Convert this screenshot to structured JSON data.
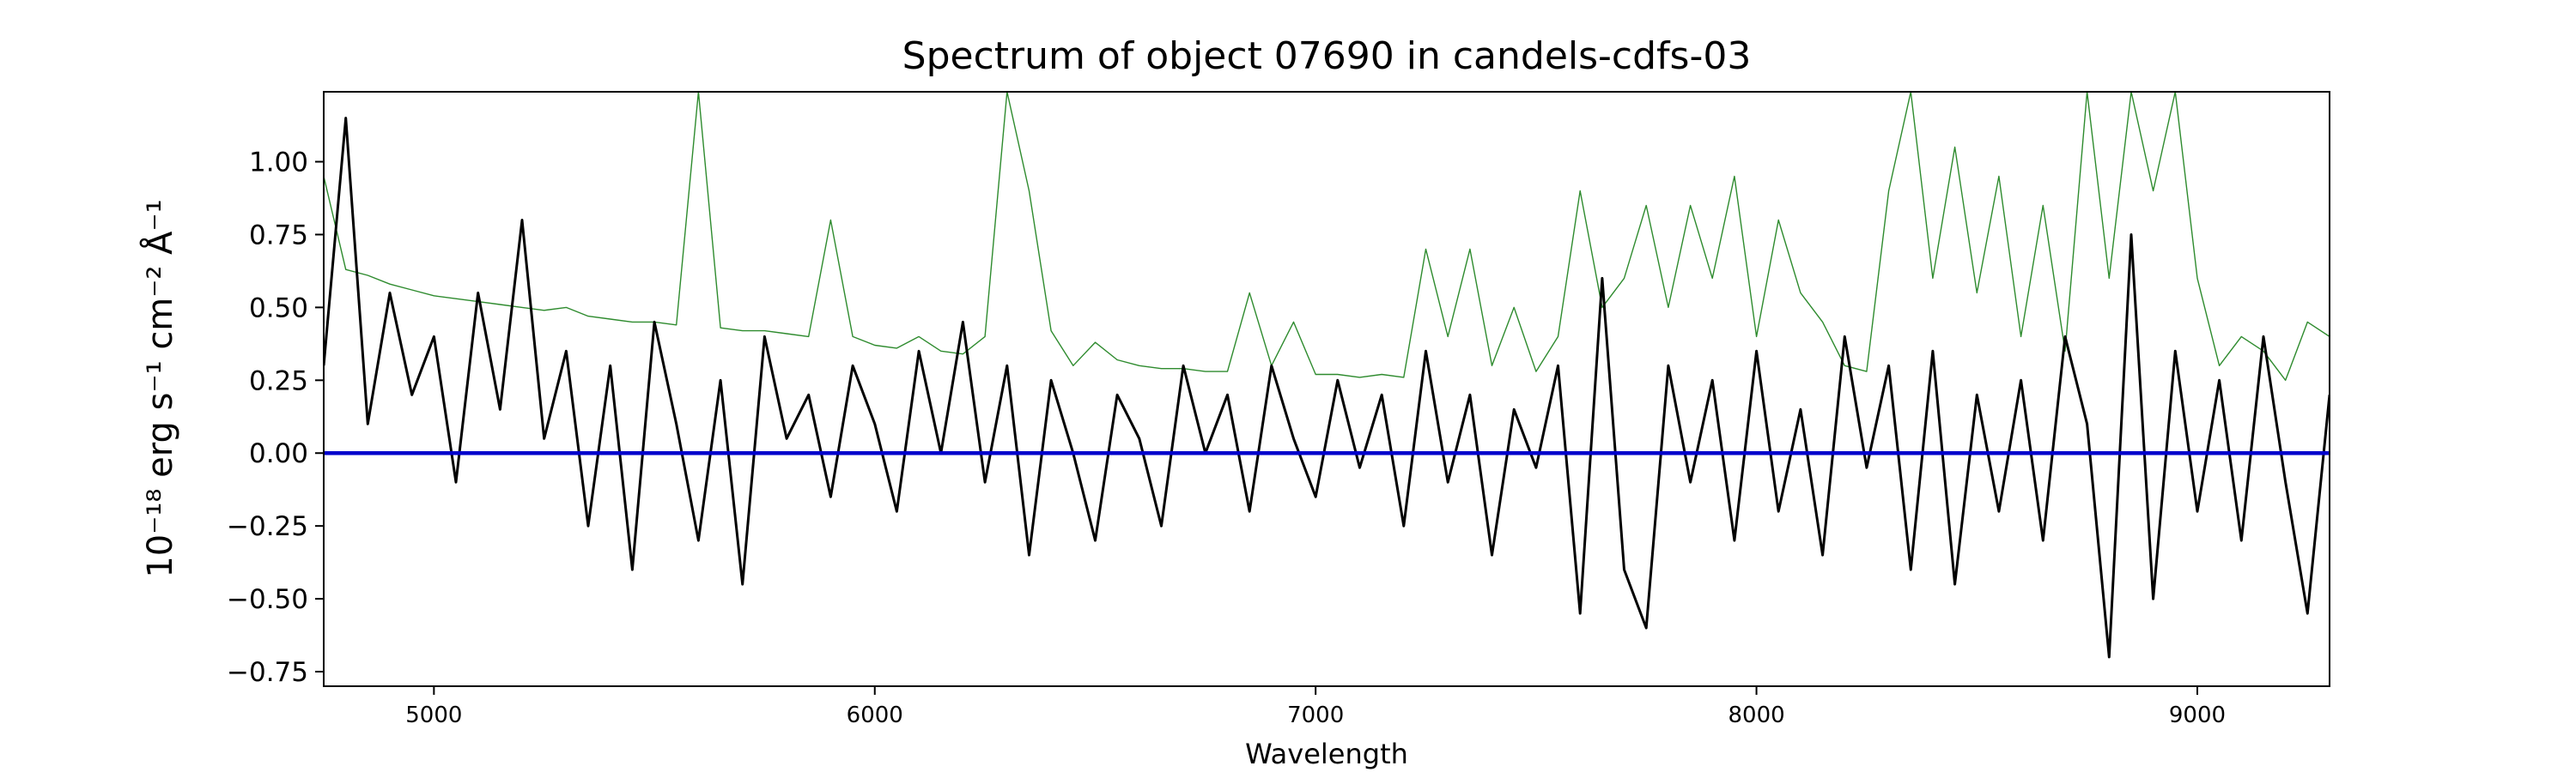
{
  "chart_data": {
    "type": "line",
    "title": "Spectrum of object 07690 in candels-cdfs-03",
    "xlabel": "Wavelength",
    "ylabel": "10⁻¹⁸ erg s⁻¹ cm⁻² Å⁻¹",
    "x": [
      4750,
      4800,
      4850,
      4900,
      4950,
      5000,
      5050,
      5100,
      5150,
      5200,
      5250,
      5300,
      5350,
      5400,
      5450,
      5500,
      5550,
      5600,
      5650,
      5700,
      5750,
      5800,
      5850,
      5900,
      5950,
      6000,
      6050,
      6100,
      6150,
      6200,
      6250,
      6300,
      6350,
      6400,
      6450,
      6500,
      6550,
      6600,
      6650,
      6700,
      6750,
      6800,
      6850,
      6900,
      6950,
      7000,
      7050,
      7100,
      7150,
      7200,
      7250,
      7300,
      7350,
      7400,
      7450,
      7500,
      7550,
      7600,
      7650,
      7700,
      7750,
      7800,
      7850,
      7900,
      7950,
      8000,
      8050,
      8100,
      8150,
      8200,
      8250,
      8300,
      8350,
      8400,
      8450,
      8500,
      8550,
      8600,
      8650,
      8700,
      8750,
      8800,
      8850,
      8900,
      8950,
      9000,
      9050,
      9100,
      9150,
      9200,
      9250,
      9300
    ],
    "series": [
      {
        "color": "#000000",
        "values": [
          0.3,
          1.15,
          0.1,
          0.55,
          0.2,
          0.4,
          -0.1,
          0.55,
          0.15,
          0.8,
          0.05,
          0.35,
          -0.25,
          0.3,
          -0.4,
          0.45,
          0.1,
          -0.3,
          0.25,
          -0.45,
          0.4,
          0.05,
          0.2,
          -0.15,
          0.3,
          0.1,
          -0.2,
          0.35,
          0.0,
          0.45,
          -0.1,
          0.3,
          -0.35,
          0.25,
          0.0,
          -0.3,
          0.2,
          0.05,
          -0.25,
          0.3,
          0.0,
          0.2,
          -0.2,
          0.3,
          0.05,
          -0.15,
          0.25,
          -0.05,
          0.2,
          -0.25,
          0.35,
          -0.1,
          0.2,
          -0.35,
          0.15,
          -0.05,
          0.3,
          -0.55,
          0.6,
          -0.4,
          -0.6,
          0.3,
          -0.1,
          0.25,
          -0.3,
          0.35,
          -0.2,
          0.15,
          -0.35,
          0.4,
          -0.05,
          0.3,
          -0.4,
          0.35,
          -0.45,
          0.2,
          -0.2,
          0.25,
          -0.3,
          0.4,
          0.1,
          -0.7,
          0.75,
          -0.5,
          0.35,
          -0.2,
          0.25,
          -0.3,
          0.4,
          -0.1,
          -0.55,
          0.2
        ]
      },
      {
        "color": "#2e8b2e",
        "values": [
          0.95,
          0.63,
          0.61,
          0.58,
          0.56,
          0.54,
          0.53,
          0.52,
          0.51,
          0.5,
          0.49,
          0.5,
          0.47,
          0.46,
          0.45,
          0.45,
          0.44,
          1.24,
          0.43,
          0.42,
          0.42,
          0.41,
          0.4,
          0.8,
          0.4,
          0.37,
          0.36,
          0.4,
          0.35,
          0.34,
          0.4,
          1.24,
          0.9,
          0.42,
          0.3,
          0.38,
          0.32,
          0.3,
          0.29,
          0.29,
          0.28,
          0.28,
          0.55,
          0.3,
          0.45,
          0.27,
          0.27,
          0.26,
          0.27,
          0.26,
          0.7,
          0.4,
          0.7,
          0.3,
          0.5,
          0.28,
          0.4,
          0.9,
          0.5,
          0.6,
          0.85,
          0.5,
          0.85,
          0.6,
          0.95,
          0.4,
          0.8,
          0.55,
          0.45,
          0.3,
          0.28,
          0.9,
          1.24,
          0.6,
          1.05,
          0.55,
          0.95,
          0.4,
          0.85,
          0.35,
          1.24,
          0.6,
          1.24,
          0.9,
          1.24,
          0.6,
          0.3,
          0.4,
          0.35,
          0.25,
          0.45,
          0.4
        ]
      },
      {
        "color": "#0000cc",
        "x": [
          4750,
          9300
        ],
        "values": [
          0,
          0
        ]
      }
    ],
    "xlim": [
      4750,
      9300
    ],
    "ylim": [
      -0.8,
      1.24
    ],
    "xticks": [
      5000,
      6000,
      7000,
      8000,
      9000
    ],
    "yticks": [
      {
        "value": 1.0,
        "label": "1.00"
      },
      {
        "value": 0.75,
        "label": "0.75"
      },
      {
        "value": 0.5,
        "label": "0.50"
      },
      {
        "value": 0.25,
        "label": "0.25"
      },
      {
        "value": 0,
        "label": "0.00"
      },
      {
        "value": -0.25,
        "label": "−0.25"
      },
      {
        "value": -0.5,
        "label": "−0.50"
      },
      {
        "value": -0.75,
        "label": "−0.75"
      }
    ]
  }
}
